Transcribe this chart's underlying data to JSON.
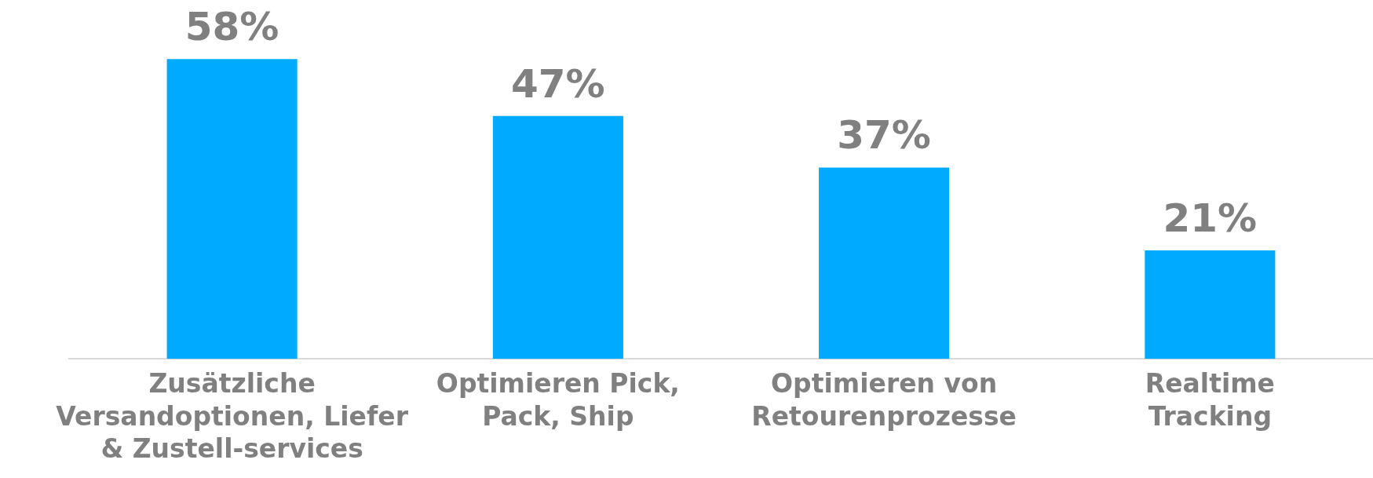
{
  "chart_data": {
    "type": "bar",
    "categories": [
      "Zusätzliche\nVersandoptionen, Liefer\n& Zustell-services",
      "Optimieren Pick,\nPack, Ship",
      "Optimieren von\nRetourenprozesse",
      "Realtime\nTracking"
    ],
    "values": [
      58,
      47,
      37,
      21
    ],
    "value_labels": [
      "58%",
      "47%",
      "37%",
      "21%"
    ],
    "color": "#00aaff",
    "grid": false,
    "legend": false,
    "tick_labels": "x"
  }
}
